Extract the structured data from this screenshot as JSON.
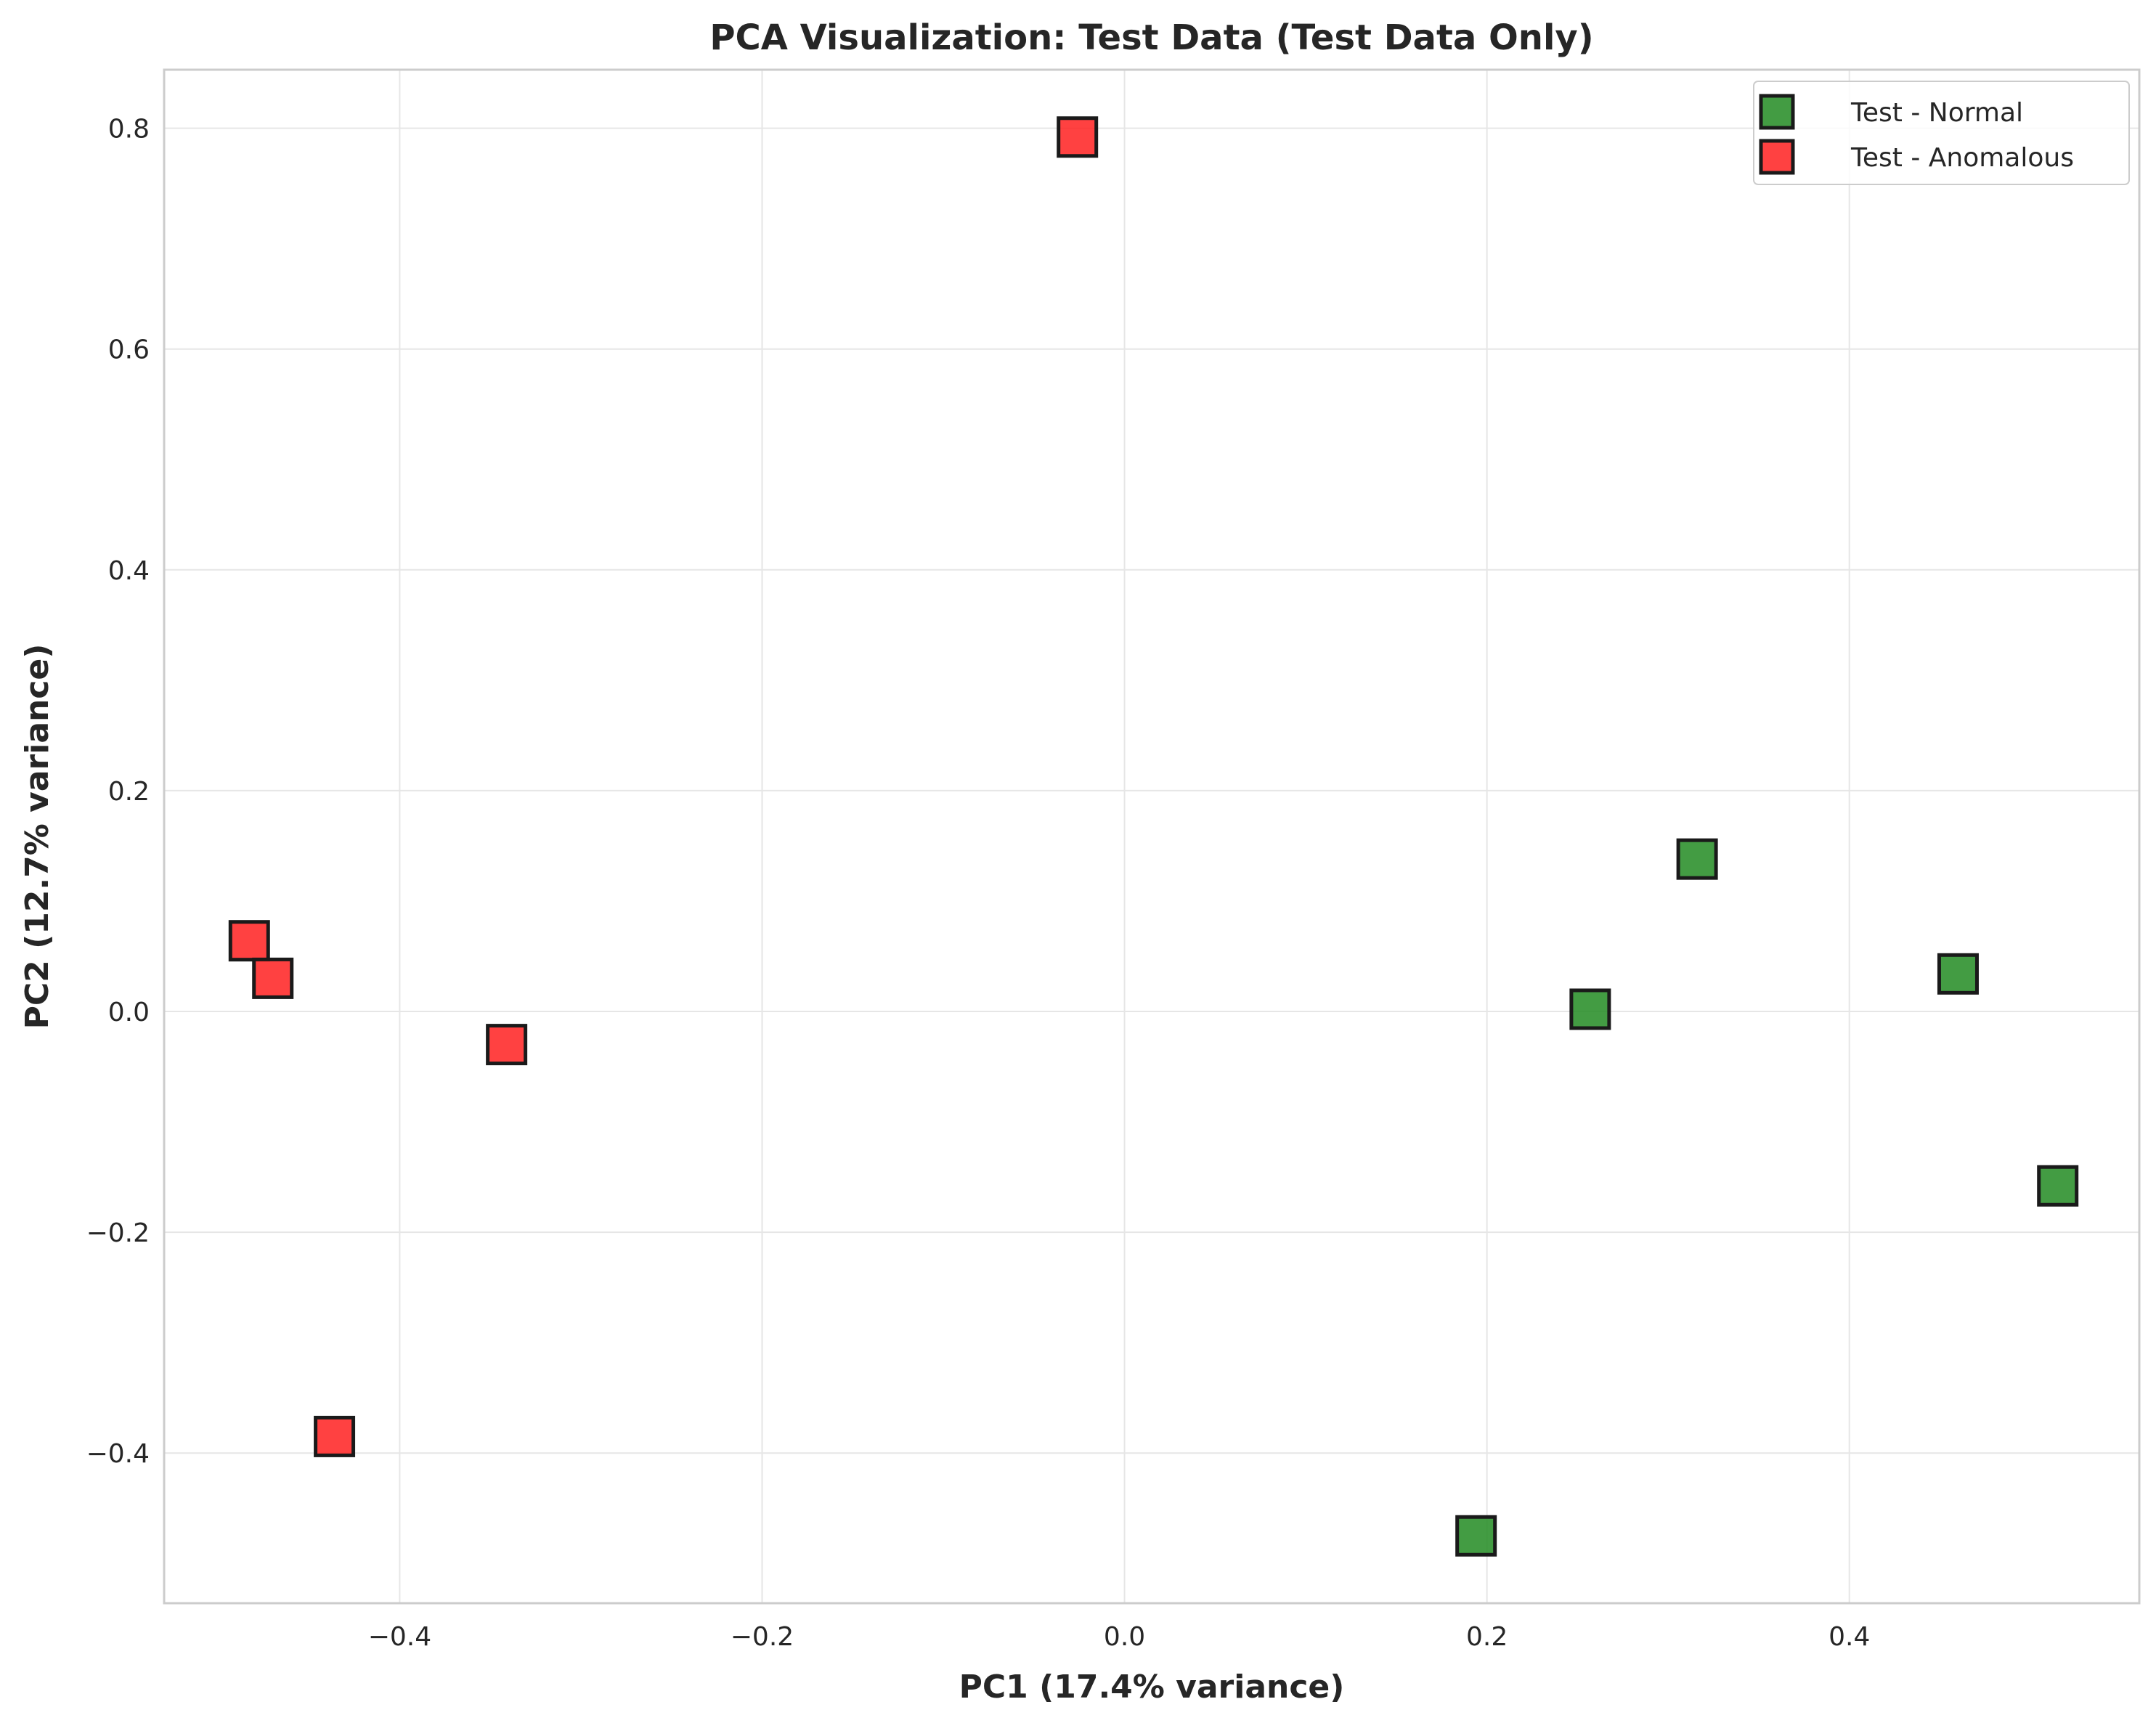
{
  "chart_data": {
    "type": "scatter",
    "title": "PCA Visualization: Test Data (Test Data Only)",
    "xlabel": "PC1 (17.4% variance)",
    "ylabel": "PC2 (12.7% variance)",
    "xlim": [
      -0.53,
      0.56
    ],
    "ylim": [
      -0.536,
      0.853
    ],
    "x_ticks": [
      -0.4,
      -0.2,
      0.0,
      0.2,
      0.4
    ],
    "x_tick_labels": [
      "−0.4",
      "−0.2",
      "0.0",
      "0.2",
      "0.4"
    ],
    "y_ticks": [
      -0.4,
      -0.2,
      0.0,
      0.2,
      0.4,
      0.6,
      0.8
    ],
    "y_tick_labels": [
      "−0.4",
      "−0.2",
      "0.0",
      "0.2",
      "0.4",
      "0.6",
      "0.8"
    ],
    "grid": true,
    "legend_position": "top-right",
    "marker": "square",
    "series": [
      {
        "name": "Test - Normal",
        "color": "#228b22",
        "points": [
          {
            "x": 0.194,
            "y": -0.475
          },
          {
            "x": 0.257,
            "y": 0.002
          },
          {
            "x": 0.316,
            "y": 0.138
          },
          {
            "x": 0.46,
            "y": 0.034
          },
          {
            "x": 0.515,
            "y": -0.158
          }
        ]
      },
      {
        "name": "Test - Anomalous",
        "color": "#ff2020",
        "points": [
          {
            "x": -0.483,
            "y": 0.064
          },
          {
            "x": -0.47,
            "y": 0.03
          },
          {
            "x": -0.341,
            "y": -0.03
          },
          {
            "x": -0.436,
            "y": -0.385
          },
          {
            "x": -0.026,
            "y": 0.792
          }
        ]
      }
    ]
  }
}
